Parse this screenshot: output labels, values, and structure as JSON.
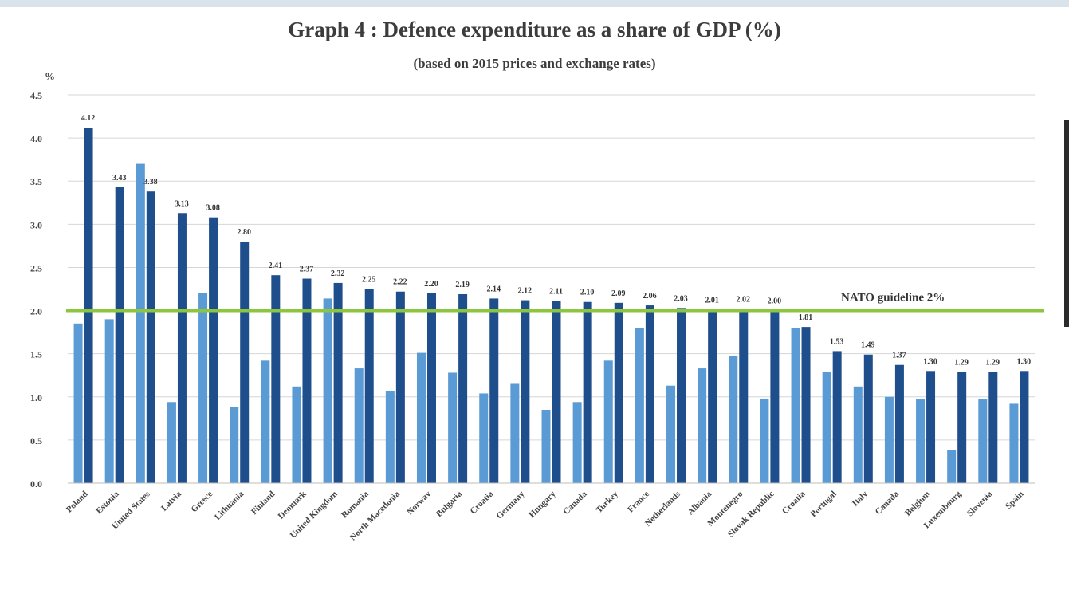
{
  "chart_data": {
    "type": "bar",
    "title": "Graph 4 : Defence expenditure as a share of GDP (%)",
    "subtitle": "(based on 2015 prices and exchange rates)",
    "ylabel": "%",
    "ylim": [
      0,
      4.5
    ],
    "yticks": [
      "0.0",
      "0.5",
      "1.0",
      "1.5",
      "2.0",
      "2.5",
      "3.0",
      "3.5",
      "4.0",
      "4.5"
    ],
    "grid": true,
    "reference_line": {
      "value": 2.0,
      "label": "NATO guideline 2%",
      "color": "#8cc63f"
    },
    "colors": {
      "series_a": "#5b9bd5",
      "series_b": "#1f4e8c"
    },
    "categories": [
      "Poland",
      "Estonia",
      "United States",
      "Latvia",
      "Greece",
      "Lithuania",
      "Finland",
      "Denmark",
      "United Kingdom",
      "Romania",
      "North Macedonia",
      "Norway",
      "Bulgaria",
      "Croatia",
      "Germany",
      "Hungary",
      "Canada",
      "Turkey",
      "France",
      "Netherlands",
      "Albania",
      "Montenegro",
      "Slovak Republic",
      "Croatia",
      "Portugal",
      "Italy",
      "Canada",
      "Belgium",
      "Luxembourg",
      "Slovenia",
      "Spain"
    ],
    "series": [
      {
        "values": [
          1.85,
          1.9,
          3.7,
          0.94,
          2.2,
          0.88,
          1.42,
          1.12,
          2.14,
          1.33,
          1.07,
          1.51,
          1.28,
          1.04,
          1.16,
          0.85,
          0.94,
          1.42,
          1.8,
          1.13,
          1.33,
          1.47,
          0.98,
          1.8,
          1.29,
          1.12,
          1.0,
          0.97,
          0.38,
          0.97,
          0.92
        ]
      },
      {
        "values": [
          4.12,
          3.43,
          3.38,
          3.13,
          3.08,
          2.8,
          2.41,
          2.37,
          2.32,
          2.25,
          2.22,
          2.2,
          2.19,
          2.14,
          2.12,
          2.11,
          2.1,
          2.09,
          2.06,
          2.03,
          2.01,
          2.02,
          2.0,
          1.81,
          1.53,
          1.49,
          1.37,
          1.3,
          1.29,
          1.29,
          1.3
        ],
        "labels": [
          "4.12",
          "3.43",
          "3.38",
          "3.13",
          "3.08",
          "2.80",
          "2.41",
          "2.37",
          "2.32",
          "2.25",
          "2.22",
          "2.20",
          "2.19",
          "2.14",
          "2.12",
          "2.11",
          "2.10",
          "2.09",
          "2.06",
          "2.03",
          "2.01",
          "2.02",
          "2.00",
          "1.81",
          "1.53",
          "1.49",
          "1.37",
          "1.30",
          "1.29",
          "1.29",
          "1.30"
        ]
      }
    ]
  }
}
